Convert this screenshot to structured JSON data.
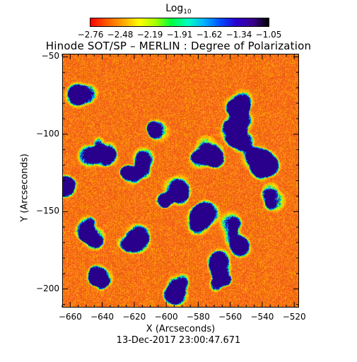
{
  "colorbar": {
    "title": "Log",
    "title_subscript": "10",
    "ticks": [
      "−2.76",
      "−2.48",
      "−2.19",
      "−1.91",
      "−1.62",
      "−1.34",
      "−1.05"
    ],
    "colors": [
      "#ff0000",
      "#ff5a00",
      "#ffa500",
      "#ffff00",
      "#a8ff00",
      "#00ff40",
      "#00ffc0",
      "#00b4ff",
      "#0050ff",
      "#2a00d0",
      "#3c0090",
      "#000000"
    ]
  },
  "title": "Hinode SOT/SP – MERLIN : Degree of Polarization",
  "axes": {
    "xlabel": "X (Arcseconds)",
    "ylabel": "Y (Arcseconds)",
    "xticks": [
      "−660",
      "−640",
      "−620",
      "−600",
      "−580",
      "−560",
      "−540",
      "−520"
    ],
    "xtick_values": [
      -660,
      -640,
      -620,
      -600,
      -580,
      -560,
      -540,
      -520
    ],
    "yticks": [
      "−50",
      "−100",
      "−150",
      "−200"
    ],
    "ytick_values": [
      -50,
      -100,
      -150,
      -200
    ],
    "xlim": [
      -665,
      -517
    ],
    "ylim": [
      -212,
      -48
    ]
  },
  "date": "13-Dec-2017 23:00:47.671",
  "image": {
    "background_color": "#f06a1a",
    "network_colors": [
      "#ffd000",
      "#a8ff00",
      "#00ff80",
      "#00c0ff",
      "#0030ff",
      "#22008a"
    ]
  }
}
